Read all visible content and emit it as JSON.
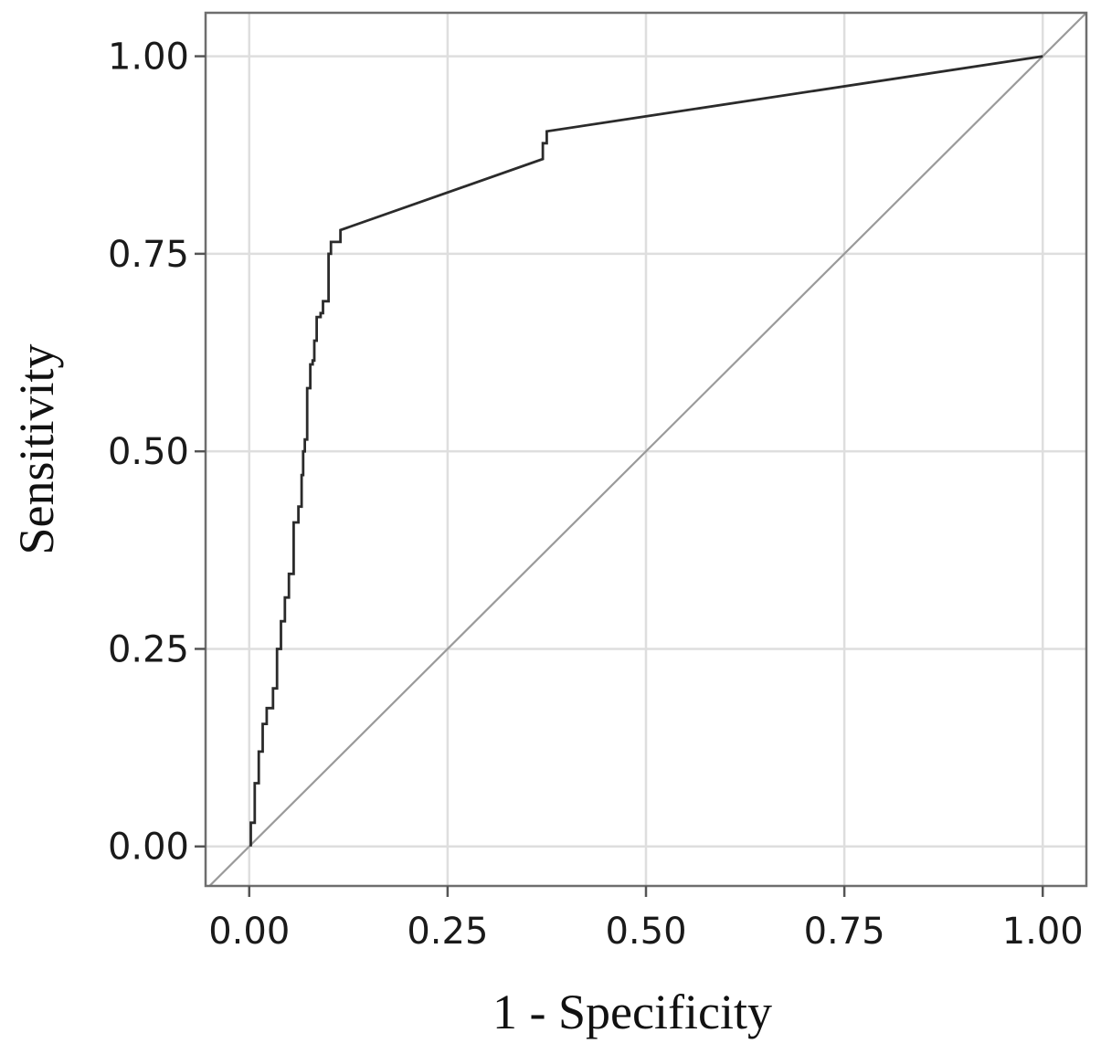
{
  "chart_data": {
    "type": "line",
    "xlabel": "1 - Specificity",
    "ylabel": "Sensitivity",
    "xlim": [
      -0.055,
      1.055
    ],
    "ylim": [
      -0.05,
      1.055
    ],
    "x_ticks": [
      0,
      0.25,
      0.5,
      0.75,
      1
    ],
    "y_ticks": [
      0,
      0.25,
      0.5,
      0.75,
      1
    ],
    "x_tick_labels": [
      "0.00",
      "0.25",
      "0.50",
      "0.75",
      "1.00"
    ],
    "y_tick_labels": [
      "0.00",
      "0.25",
      "0.50",
      "0.75",
      "1.00"
    ],
    "grid": true,
    "colors": {
      "curve": "#2b2b2b",
      "reference": "#9a9a9a",
      "grid": "#dedede",
      "frame": "#6e6e6e"
    },
    "series": [
      {
        "points": [
          [
            0.002,
            0.0
          ],
          [
            0.002,
            0.03
          ],
          [
            0.007,
            0.03
          ],
          [
            0.007,
            0.08
          ],
          [
            0.012,
            0.08
          ],
          [
            0.012,
            0.12
          ],
          [
            0.017,
            0.12
          ],
          [
            0.017,
            0.155
          ],
          [
            0.022,
            0.155
          ],
          [
            0.022,
            0.175
          ],
          [
            0.03,
            0.175
          ],
          [
            0.03,
            0.2
          ],
          [
            0.035,
            0.2
          ],
          [
            0.035,
            0.25
          ],
          [
            0.04,
            0.25
          ],
          [
            0.04,
            0.285
          ],
          [
            0.045,
            0.285
          ],
          [
            0.045,
            0.315
          ],
          [
            0.05,
            0.315
          ],
          [
            0.05,
            0.345
          ],
          [
            0.056,
            0.345
          ],
          [
            0.056,
            0.41
          ],
          [
            0.062,
            0.41
          ],
          [
            0.062,
            0.43
          ],
          [
            0.066,
            0.43
          ],
          [
            0.066,
            0.47
          ],
          [
            0.068,
            0.47
          ],
          [
            0.068,
            0.5
          ],
          [
            0.07,
            0.5
          ],
          [
            0.07,
            0.515
          ],
          [
            0.073,
            0.515
          ],
          [
            0.073,
            0.58
          ],
          [
            0.077,
            0.58
          ],
          [
            0.077,
            0.61
          ],
          [
            0.08,
            0.61
          ],
          [
            0.08,
            0.615
          ],
          [
            0.082,
            0.615
          ],
          [
            0.082,
            0.64
          ],
          [
            0.085,
            0.64
          ],
          [
            0.085,
            0.67
          ],
          [
            0.09,
            0.67
          ],
          [
            0.09,
            0.675
          ],
          [
            0.093,
            0.675
          ],
          [
            0.093,
            0.69
          ],
          [
            0.1,
            0.69
          ],
          [
            0.1,
            0.75
          ],
          [
            0.103,
            0.75
          ],
          [
            0.103,
            0.765
          ],
          [
            0.115,
            0.765
          ],
          [
            0.115,
            0.78
          ],
          [
            0.37,
            0.87
          ],
          [
            0.37,
            0.89
          ],
          [
            0.375,
            0.89
          ],
          [
            0.375,
            0.905
          ],
          [
            1.0,
            1.0
          ]
        ]
      },
      {
        "points": [
          [
            -0.055,
            -0.055
          ],
          [
            1.055,
            1.055
          ]
        ]
      }
    ]
  }
}
